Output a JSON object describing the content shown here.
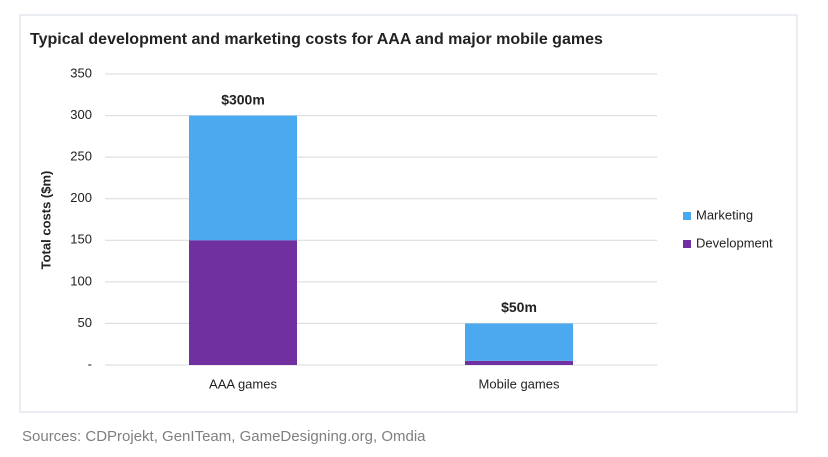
{
  "chart_data": {
    "type": "stacked_bar",
    "title": "Typical development and marketing costs for AAA and major mobile games",
    "ylabel": "Total costs ($m)",
    "categories": [
      "AAA games",
      "Mobile games"
    ],
    "series": [
      {
        "name": "Development",
        "color": "#7030a0",
        "values": [
          150,
          5
        ]
      },
      {
        "name": "Marketing",
        "color": "#4ba9ef",
        "values": [
          150,
          45
        ]
      }
    ],
    "annotations": [
      "$300m",
      "$50m"
    ],
    "ylim": [
      0,
      350
    ],
    "yticks": [
      {
        "value": 0,
        "label": "-"
      },
      50,
      100,
      150,
      200,
      250,
      300,
      350
    ],
    "grid": true,
    "legend": "right",
    "source": "Sources: CDProjekt, GenITeam, GameDesigning.org, Omdia"
  }
}
